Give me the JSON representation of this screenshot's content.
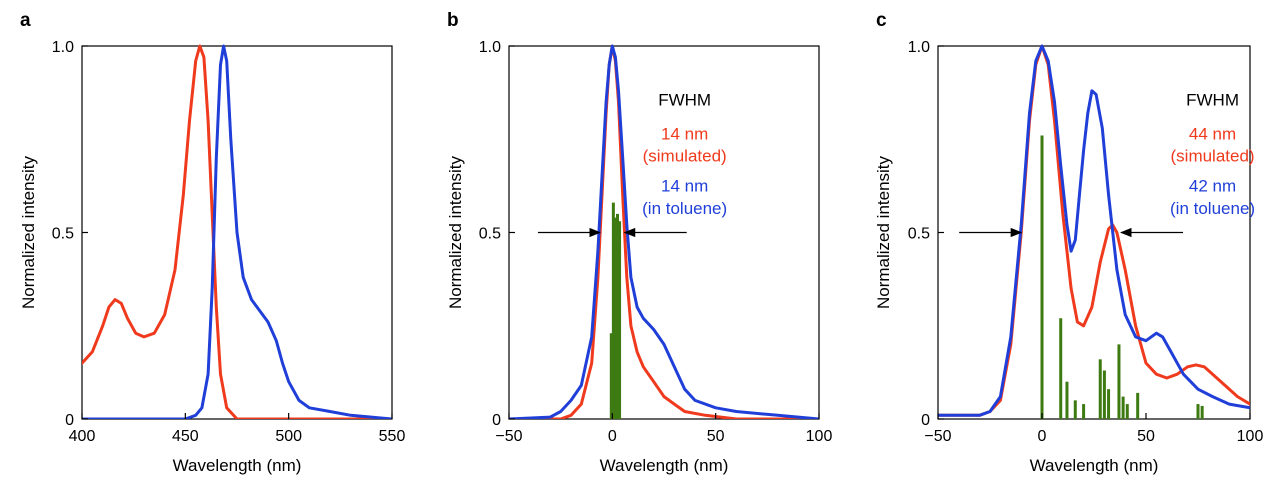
{
  "colors": {
    "red": "#ef3a1d",
    "blue": "#1f3fd8",
    "green": "#3d7a12",
    "axis": "#000000"
  },
  "chart_data": [
    {
      "panel": "a",
      "type": "line",
      "xlabel": "Wavelength (nm)",
      "ylabel": "Normalized intensity",
      "xlim": [
        400,
        550
      ],
      "ylim": [
        0,
        1.0
      ],
      "xticks": [
        400,
        450,
        500,
        550
      ],
      "yticks": [
        0,
        0.5,
        1.0
      ],
      "ytick_labels": [
        "0",
        "0.5",
        "1.0"
      ],
      "series": [
        {
          "color": "red",
          "points": [
            [
              400,
              0.15
            ],
            [
              405,
              0.18
            ],
            [
              410,
              0.25
            ],
            [
              413,
              0.3
            ],
            [
              416,
              0.32
            ],
            [
              419,
              0.31
            ],
            [
              422,
              0.27
            ],
            [
              426,
              0.23
            ],
            [
              430,
              0.22
            ],
            [
              435,
              0.23
            ],
            [
              440,
              0.28
            ],
            [
              445,
              0.4
            ],
            [
              449,
              0.6
            ],
            [
              452,
              0.8
            ],
            [
              455,
              0.96
            ],
            [
              457,
              1.0
            ],
            [
              459,
              0.97
            ],
            [
              461,
              0.8
            ],
            [
              463,
              0.55
            ],
            [
              465,
              0.3
            ],
            [
              467,
              0.12
            ],
            [
              470,
              0.03
            ],
            [
              475,
              0.0
            ],
            [
              550,
              0.0
            ]
          ]
        },
        {
          "color": "blue",
          "points": [
            [
              400,
              0.0
            ],
            [
              450,
              0.0
            ],
            [
              455,
              0.01
            ],
            [
              458,
              0.03
            ],
            [
              461,
              0.12
            ],
            [
              463,
              0.35
            ],
            [
              465,
              0.7
            ],
            [
              467,
              0.95
            ],
            [
              468.5,
              1.0
            ],
            [
              470,
              0.96
            ],
            [
              472,
              0.75
            ],
            [
              475,
              0.5
            ],
            [
              478,
              0.38
            ],
            [
              482,
              0.32
            ],
            [
              486,
              0.29
            ],
            [
              490,
              0.26
            ],
            [
              494,
              0.21
            ],
            [
              497,
              0.15
            ],
            [
              500,
              0.1
            ],
            [
              505,
              0.05
            ],
            [
              510,
              0.03
            ],
            [
              520,
              0.02
            ],
            [
              530,
              0.01
            ],
            [
              540,
              0.005
            ],
            [
              550,
              0.0
            ]
          ]
        }
      ]
    },
    {
      "panel": "b",
      "type": "line",
      "xlabel": "Wavelength (nm)",
      "ylabel": "Normalized intensity",
      "xlim": [
        -50,
        100
      ],
      "ylim": [
        0,
        1.0
      ],
      "xticks": [
        -50,
        0,
        50,
        100
      ],
      "xtick_labels": [
        "−50",
        "0",
        "50",
        "100"
      ],
      "yticks": [
        0,
        0.5,
        1.0
      ],
      "ytick_labels": [
        "0",
        "0.5",
        "1.0"
      ],
      "series": [
        {
          "color": "red",
          "points": [
            [
              -50,
              0.0
            ],
            [
              -25,
              0.0
            ],
            [
              -20,
              0.01
            ],
            [
              -15,
              0.04
            ],
            [
              -10,
              0.15
            ],
            [
              -7,
              0.38
            ],
            [
              -5,
              0.6
            ],
            [
              -3,
              0.82
            ],
            [
              -1.5,
              0.95
            ],
            [
              0,
              1.0
            ],
            [
              1.5,
              0.96
            ],
            [
              3,
              0.85
            ],
            [
              5,
              0.6
            ],
            [
              7,
              0.38
            ],
            [
              9,
              0.25
            ],
            [
              12,
              0.18
            ],
            [
              15,
              0.14
            ],
            [
              20,
              0.1
            ],
            [
              25,
              0.06
            ],
            [
              30,
              0.04
            ],
            [
              35,
              0.02
            ],
            [
              45,
              0.01
            ],
            [
              60,
              0.0
            ],
            [
              100,
              0.0
            ]
          ]
        },
        {
          "color": "blue",
          "points": [
            [
              -50,
              0.0
            ],
            [
              -30,
              0.005
            ],
            [
              -25,
              0.02
            ],
            [
              -20,
              0.05
            ],
            [
              -15,
              0.09
            ],
            [
              -10,
              0.22
            ],
            [
              -7,
              0.45
            ],
            [
              -5,
              0.65
            ],
            [
              -3,
              0.85
            ],
            [
              -1.5,
              0.95
            ],
            [
              0,
              1.0
            ],
            [
              1.5,
              0.97
            ],
            [
              3,
              0.88
            ],
            [
              5,
              0.7
            ],
            [
              7,
              0.52
            ],
            [
              9,
              0.38
            ],
            [
              12,
              0.3
            ],
            [
              15,
              0.27
            ],
            [
              20,
              0.24
            ],
            [
              25,
              0.2
            ],
            [
              30,
              0.14
            ],
            [
              35,
              0.08
            ],
            [
              40,
              0.05
            ],
            [
              50,
              0.03
            ],
            [
              60,
              0.02
            ],
            [
              80,
              0.01
            ],
            [
              100,
              0.0
            ]
          ]
        }
      ],
      "bars": {
        "color": "green",
        "points": [
          [
            -0.5,
            0.23
          ],
          [
            0.5,
            0.58
          ],
          [
            1.5,
            0.54
          ],
          [
            2.5,
            0.55
          ],
          [
            3.5,
            0.53
          ]
        ]
      },
      "arrows": [
        {
          "y": 0.5,
          "left_x": -6,
          "right_x": 6
        }
      ],
      "annotations": [
        {
          "text": "FWHM",
          "color": "axis",
          "x": 35,
          "y": 0.84
        },
        {
          "text": "14 nm",
          "color": "red",
          "x": 35,
          "y": 0.75
        },
        {
          "text": "(simulated)",
          "color": "red",
          "x": 35,
          "y": 0.69
        },
        {
          "text": "14 nm",
          "color": "blue",
          "x": 35,
          "y": 0.61
        },
        {
          "text": "(in toluene)",
          "color": "blue",
          "x": 35,
          "y": 0.55
        }
      ]
    },
    {
      "panel": "c",
      "type": "line",
      "xlabel": "Wavelength (nm)",
      "ylabel": "Normalized intensity",
      "xlim": [
        -50,
        100
      ],
      "ylim": [
        0,
        1.0
      ],
      "xticks": [
        -50,
        0,
        50,
        100
      ],
      "xtick_labels": [
        "−50",
        "0",
        "50",
        "100"
      ],
      "yticks": [
        0,
        0.5,
        1.0
      ],
      "ytick_labels": [
        "0",
        "0.5",
        "1.0"
      ],
      "series": [
        {
          "color": "red",
          "points": [
            [
              -50,
              0.01
            ],
            [
              -30,
              0.01
            ],
            [
              -25,
              0.02
            ],
            [
              -20,
              0.05
            ],
            [
              -15,
              0.2
            ],
            [
              -10,
              0.5
            ],
            [
              -6,
              0.8
            ],
            [
              -3,
              0.95
            ],
            [
              0,
              1.0
            ],
            [
              3,
              0.95
            ],
            [
              6,
              0.8
            ],
            [
              10,
              0.55
            ],
            [
              14,
              0.35
            ],
            [
              17,
              0.26
            ],
            [
              20,
              0.25
            ],
            [
              24,
              0.3
            ],
            [
              28,
              0.42
            ],
            [
              32,
              0.51
            ],
            [
              34,
              0.52
            ],
            [
              36,
              0.5
            ],
            [
              40,
              0.4
            ],
            [
              45,
              0.25
            ],
            [
              50,
              0.15
            ],
            [
              55,
              0.12
            ],
            [
              60,
              0.11
            ],
            [
              65,
              0.12
            ],
            [
              70,
              0.14
            ],
            [
              74,
              0.145
            ],
            [
              78,
              0.14
            ],
            [
              82,
              0.12
            ],
            [
              88,
              0.09
            ],
            [
              94,
              0.06
            ],
            [
              100,
              0.04
            ]
          ]
        },
        {
          "color": "blue",
          "points": [
            [
              -50,
              0.01
            ],
            [
              -30,
              0.01
            ],
            [
              -25,
              0.02
            ],
            [
              -20,
              0.06
            ],
            [
              -15,
              0.22
            ],
            [
              -10,
              0.52
            ],
            [
              -6,
              0.82
            ],
            [
              -3,
              0.96
            ],
            [
              0,
              1.0
            ],
            [
              3,
              0.96
            ],
            [
              6,
              0.85
            ],
            [
              9,
              0.68
            ],
            [
              12,
              0.52
            ],
            [
              14,
              0.45
            ],
            [
              16,
              0.48
            ],
            [
              18,
              0.6
            ],
            [
              20,
              0.72
            ],
            [
              22,
              0.82
            ],
            [
              24,
              0.88
            ],
            [
              26,
              0.87
            ],
            [
              29,
              0.78
            ],
            [
              32,
              0.6
            ],
            [
              36,
              0.4
            ],
            [
              40,
              0.28
            ],
            [
              45,
              0.22
            ],
            [
              50,
              0.21
            ],
            [
              55,
              0.23
            ],
            [
              58,
              0.22
            ],
            [
              62,
              0.18
            ],
            [
              68,
              0.12
            ],
            [
              75,
              0.08
            ],
            [
              82,
              0.06
            ],
            [
              90,
              0.04
            ],
            [
              100,
              0.03
            ]
          ]
        }
      ],
      "bars": {
        "color": "green",
        "points": [
          [
            0,
            0.76
          ],
          [
            9,
            0.27
          ],
          [
            12,
            0.1
          ],
          [
            16,
            0.05
          ],
          [
            20,
            0.04
          ],
          [
            28,
            0.16
          ],
          [
            30,
            0.13
          ],
          [
            32,
            0.08
          ],
          [
            37,
            0.2
          ],
          [
            39,
            0.06
          ],
          [
            41,
            0.04
          ],
          [
            46,
            0.07
          ],
          [
            75,
            0.04
          ],
          [
            77,
            0.035
          ]
        ]
      },
      "arrows": [
        {
          "y": 0.5,
          "left_x": -10,
          "right_x": 38
        }
      ],
      "annotations": [
        {
          "text": "FWHM",
          "color": "axis",
          "x": 82,
          "y": 0.84
        },
        {
          "text": "44 nm",
          "color": "red",
          "x": 82,
          "y": 0.75
        },
        {
          "text": "(simulated)",
          "color": "red",
          "x": 82,
          "y": 0.69
        },
        {
          "text": "42 nm",
          "color": "blue",
          "x": 82,
          "y": 0.61
        },
        {
          "text": "(in toluene)",
          "color": "blue",
          "x": 82,
          "y": 0.55
        }
      ]
    }
  ]
}
